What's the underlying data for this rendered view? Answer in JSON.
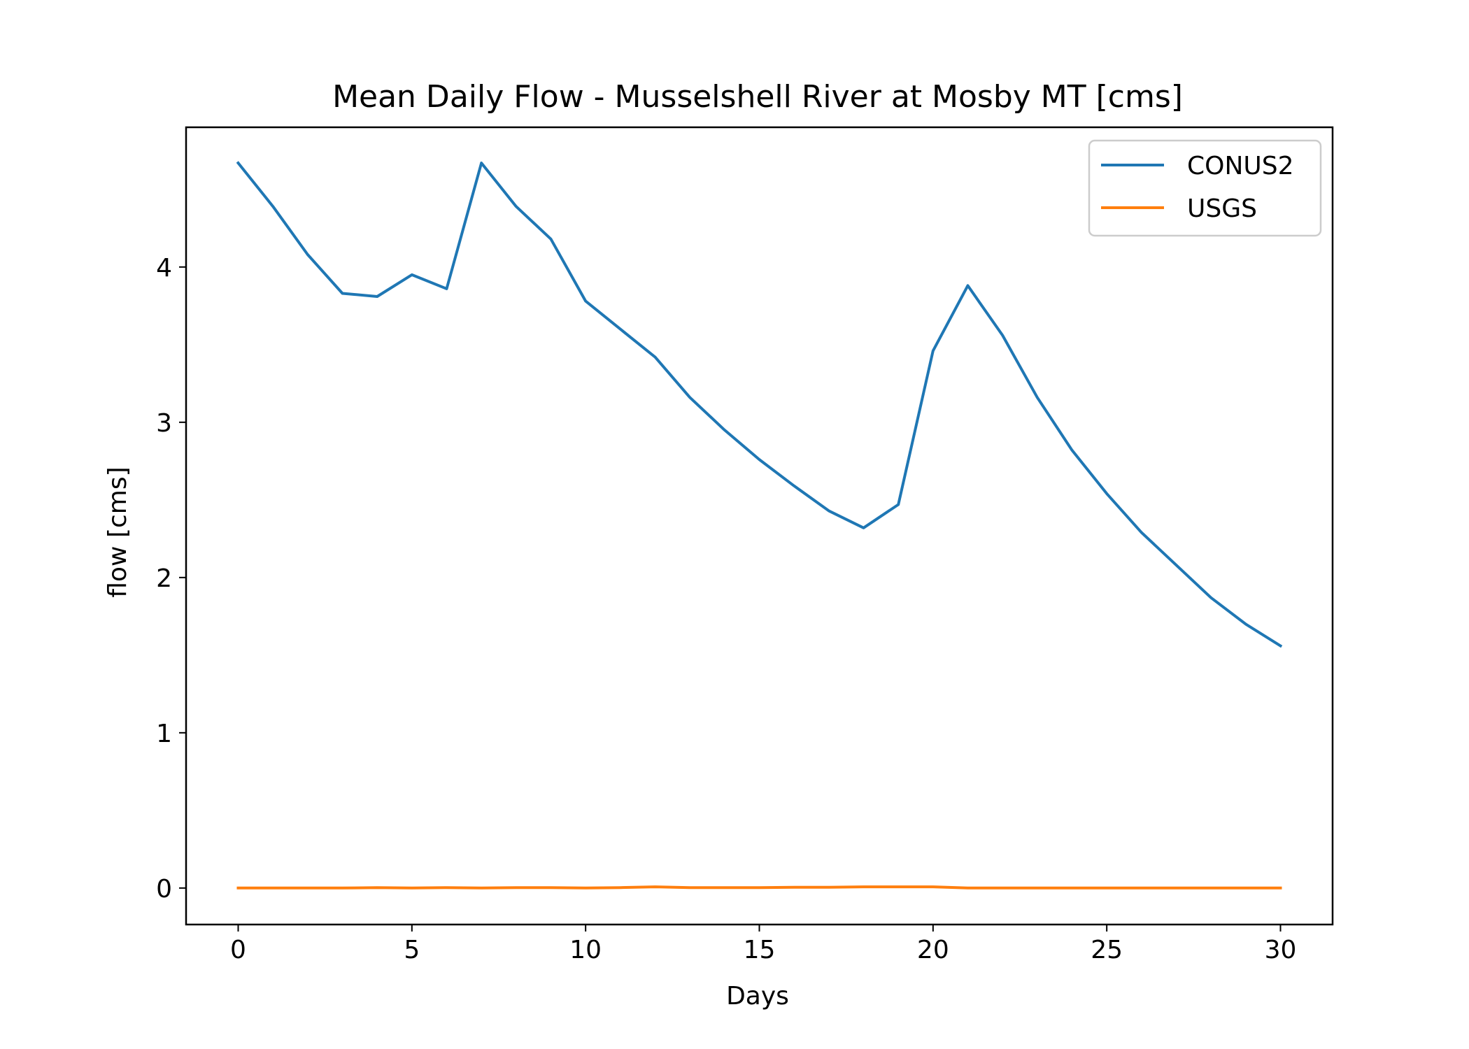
{
  "chart_data": {
    "type": "line",
    "title": "Mean Daily Flow - Musselshell River at Mosby MT [cms]",
    "xlabel": "Days",
    "ylabel": "flow [cms]",
    "xlim": [
      -1.5,
      31.5
    ],
    "ylim": [
      -0.235,
      4.9
    ],
    "xticks": [
      0,
      5,
      10,
      15,
      20,
      25,
      30
    ],
    "yticks": [
      0,
      1,
      2,
      3,
      4
    ],
    "grid": false,
    "legend": "top-right",
    "x": [
      0,
      1,
      2,
      3,
      4,
      5,
      6,
      7,
      8,
      9,
      10,
      11,
      12,
      13,
      14,
      15,
      16,
      17,
      18,
      19,
      20,
      21,
      22,
      23,
      24,
      25,
      26,
      27,
      28,
      29,
      30
    ],
    "series": [
      {
        "name": "CONUS2",
        "color": "#1f77b4",
        "values": [
          4.67,
          4.39,
          4.08,
          3.83,
          3.81,
          3.95,
          3.86,
          4.67,
          4.39,
          4.18,
          3.78,
          3.6,
          3.42,
          3.16,
          2.95,
          2.76,
          2.59,
          2.43,
          2.32,
          2.47,
          3.46,
          3.88,
          3.56,
          3.16,
          2.82,
          2.54,
          2.29,
          2.08,
          1.87,
          1.7,
          1.56
        ]
      },
      {
        "name": "USGS",
        "color": "#ff7f0e",
        "values": [
          0.0,
          0.0,
          0.0,
          0.0,
          0.003,
          0.0,
          0.003,
          0.0,
          0.003,
          0.003,
          0.0,
          0.003,
          0.008,
          0.003,
          0.003,
          0.003,
          0.005,
          0.005,
          0.008,
          0.008,
          0.008,
          0.0,
          0.0,
          0.0,
          0.0,
          0.0,
          0.0,
          0.0,
          0.0,
          0.0,
          0.0
        ]
      }
    ]
  }
}
